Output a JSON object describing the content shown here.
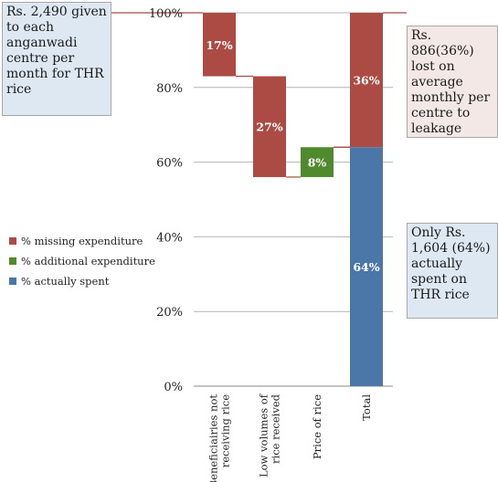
{
  "chart_data": {
    "type": "waterfall",
    "yaxis": {
      "ticks": [
        "0%",
        "20%",
        "40%",
        "60%",
        "80%",
        "100%"
      ],
      "min": 0,
      "max": 100
    },
    "categories": [
      "Beneficiairies not receiving rice",
      "Low volumes of rice received",
      "Price of rice",
      "Total"
    ],
    "bars": [
      {
        "category": "Beneficiairies not receiving rice",
        "start": 83,
        "end": 100,
        "label": "17%",
        "kind": "missing"
      },
      {
        "category": "Low volumes of rice received",
        "start": 56,
        "end": 83,
        "label": "27%",
        "kind": "missing"
      },
      {
        "category": "Price of rice",
        "start": 56,
        "end": 64,
        "label": "8%",
        "kind": "additional"
      },
      {
        "category": "Total",
        "start": 64,
        "end": 100,
        "label": "36%",
        "kind": "missing"
      },
      {
        "category": "Total",
        "start": 0,
        "end": 64,
        "label": "64%",
        "kind": "spent"
      }
    ],
    "legend": [
      {
        "key": "missing",
        "label": "% missing expenditure"
      },
      {
        "key": "additional",
        "label": "% additional expenditure"
      },
      {
        "key": "spent",
        "label": "% actually spent"
      }
    ],
    "colors": {
      "missing": "#ab4b44",
      "additional": "#4f8a2c",
      "spent": "#4a77a8"
    },
    "callouts": {
      "top_left": "Rs. 2,490 given to each anganwadi centre per month for THR rice",
      "top_right": "Rs. 886(36%) lost on average monthly per centre to leakage",
      "bottom_right": "Only Rs. 1,604 (64%) actually spent on THR rice"
    }
  }
}
